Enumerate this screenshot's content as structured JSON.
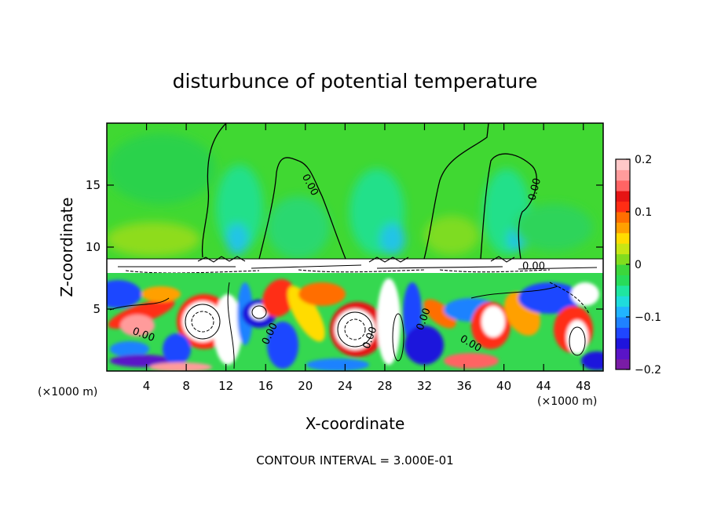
{
  "chart_data": {
    "type": "heatmap",
    "title": "disturbunce of potential temperature",
    "xlabel": "X-coordinate",
    "ylabel": "Z-coordinate",
    "x_unit_left": "(×1000 m)",
    "x_unit_right": "(×1000 m)",
    "footer": "CONTOUR INTERVAL = 3.000E-01",
    "xlim": [
      0,
      50
    ],
    "ylim": [
      0,
      20
    ],
    "x_ticks": [
      {
        "v": 4,
        "label": "4"
      },
      {
        "v": 8,
        "label": "8"
      },
      {
        "v": 12,
        "label": "12"
      },
      {
        "v": 16,
        "label": "16"
      },
      {
        "v": 20,
        "label": "20"
      },
      {
        "v": 24,
        "label": "24"
      },
      {
        "v": 28,
        "label": "28"
      },
      {
        "v": 32,
        "label": "32"
      },
      {
        "v": 36,
        "label": "36"
      },
      {
        "v": 40,
        "label": "40"
      },
      {
        "v": 44,
        "label": "44"
      },
      {
        "v": 48,
        "label": "48"
      }
    ],
    "y_ticks": [
      {
        "v": 5,
        "label": "5"
      },
      {
        "v": 10,
        "label": "10"
      },
      {
        "v": 15,
        "label": "15"
      }
    ],
    "colorbar": {
      "min": -0.2,
      "max": 0.2,
      "ticks": [
        {
          "v": 0.2,
          "label": "0.2"
        },
        {
          "v": 0.1,
          "label": "0.1"
        },
        {
          "v": 0,
          "label": "0"
        },
        {
          "v": -0.1,
          "label": "−0.1"
        },
        {
          "v": -0.2,
          "label": "−0.2"
        }
      ],
      "colors": [
        "#7a1ca6",
        "#5a14c8",
        "#1e14dc",
        "#1f46ff",
        "#1f82ff",
        "#21b4ff",
        "#1fdcdc",
        "#1fe6a0",
        "#28dc5a",
        "#3cd73c",
        "#82dc1e",
        "#c8e614",
        "#ffdc00",
        "#ffa000",
        "#ff6e00",
        "#ff2d14",
        "#e61414",
        "#ff6464",
        "#ff9b9b",
        "#ffc8c8"
      ]
    },
    "contour_labels": [
      {
        "x": 20.2,
        "z": 14.9,
        "text": "0.00",
        "angle": 62
      },
      {
        "x": 43.4,
        "z": 14.6,
        "text": "0.00",
        "angle": -75
      },
      {
        "x": 3.6,
        "z": 2.7,
        "text": "0.00",
        "angle": 20
      },
      {
        "x": 16.7,
        "z": 2.9,
        "text": "0.00",
        "angle": -65
      },
      {
        "x": 26.8,
        "z": 2.6,
        "text": "0.00",
        "angle": -70
      },
      {
        "x": 32.2,
        "z": 4.1,
        "text": "0.00",
        "angle": -70
      },
      {
        "x": 36.5,
        "z": 2.0,
        "text": "0.00",
        "angle": 30
      },
      {
        "x": 43.0,
        "z": 8.2,
        "text": "0.00",
        "angle": 0
      }
    ]
  }
}
